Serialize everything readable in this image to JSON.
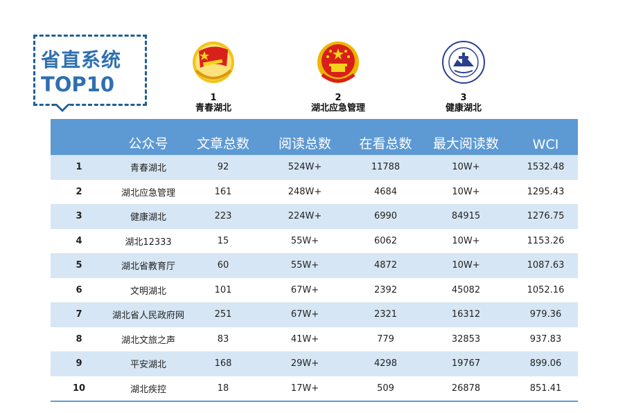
{
  "badge": {
    "line1": "省直系统",
    "line2": "TOP10"
  },
  "podium": [
    {
      "rank": "1",
      "name": "青春湖北",
      "icon": "youth-league-emblem-icon"
    },
    {
      "rank": "2",
      "name": "湖北应急管理",
      "icon": "national-emblem-icon"
    },
    {
      "rank": "3",
      "name": "健康湖北",
      "icon": "health-commission-logo-icon"
    }
  ],
  "table": {
    "headers": [
      "",
      "公众号",
      "文章总数",
      "阅读总数",
      "在看总数",
      "最大阅读数",
      "WCI"
    ],
    "rows": [
      [
        "1",
        "青春湖北",
        "92",
        "524W+",
        "11788",
        "10W+",
        "1532.48"
      ],
      [
        "2",
        "湖北应急管理",
        "161",
        "248W+",
        "4684",
        "10W+",
        "1295.43"
      ],
      [
        "3",
        "健康湖北",
        "223",
        "224W+",
        "6990",
        "84915",
        "1276.75"
      ],
      [
        "4",
        "湖北12333",
        "15",
        "55W+",
        "6062",
        "10W+",
        "1153.26"
      ],
      [
        "5",
        "湖北省教育厅",
        "60",
        "55W+",
        "4872",
        "10W+",
        "1087.63"
      ],
      [
        "6",
        "文明湖北",
        "101",
        "67W+",
        "2392",
        "45082",
        "1052.16"
      ],
      [
        "7",
        "湖北省人民政府网",
        "251",
        "67W+",
        "2321",
        "16312",
        "979.36"
      ],
      [
        "8",
        "湖北文旅之声",
        "83",
        "41W+",
        "779",
        "32853",
        "937.83"
      ],
      [
        "9",
        "平安湖北",
        "168",
        "29W+",
        "4298",
        "19767",
        "899.06"
      ],
      [
        "10",
        "湖北疾控",
        "18",
        "17W+",
        "509",
        "26878",
        "851.41"
      ]
    ]
  },
  "colors": {
    "header_bg": "#5d99d3",
    "stripe": "#d6e6f4",
    "badge": "#2f6fb0"
  }
}
